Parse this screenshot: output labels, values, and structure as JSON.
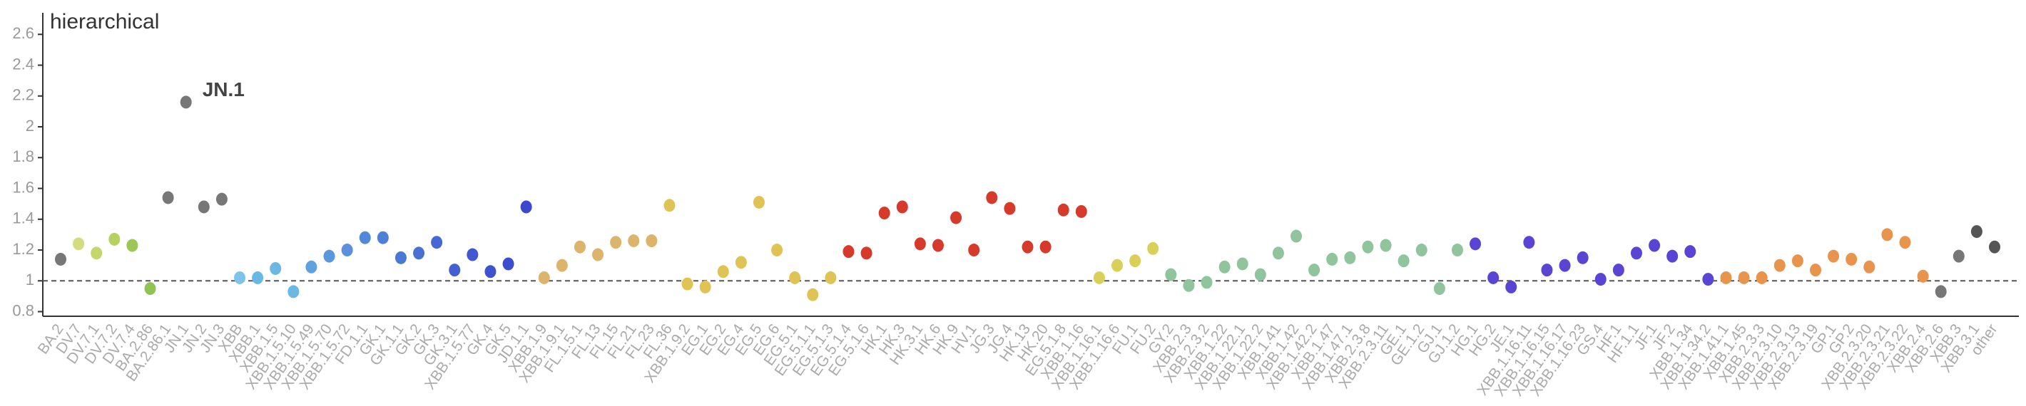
{
  "chart_data": {
    "type": "dot",
    "title": "hierarchical",
    "annotations": [
      "JN.1"
    ],
    "reference_line": 1,
    "categories": [
      "BA.2",
      "DV.7",
      "DV.7.1",
      "DV.7.2",
      "DV.7.4",
      "BA.2.86",
      "BA.2.86.1",
      "JN.1",
      "JN.2",
      "JN.3",
      "XBB",
      "XBB.1",
      "XBB.1.5",
      "XBB.1.5.10",
      "XBB.1.5.49",
      "XBB.1.5.70",
      "XBB.1.5.72",
      "FD.1.1",
      "GK.1",
      "GK.1.1",
      "GK.2",
      "GK.3",
      "GK.3.1",
      "XBB.1.5.77",
      "GK.4",
      "GK.5",
      "JD.1.1",
      "XBB.1.9",
      "XBB.1.9.1",
      "FL.1.5.1",
      "FL.13",
      "FL.15",
      "FL.21",
      "FL.23",
      "FL.36",
      "XBB.1.9.2",
      "EG.1",
      "EG.2",
      "EG.4",
      "EG.5",
      "EG.6",
      "EG.5.1",
      "EG.5.1.1",
      "EG.5.1.3",
      "EG.5.1.4",
      "EG.5.1.6",
      "HK.1",
      "HK.3",
      "HK.3.1",
      "HK.6",
      "HK.9",
      "HV.1",
      "JG.3",
      "JG.4",
      "HK.13",
      "HK.20",
      "EG.5.1.8",
      "XBB.1.16",
      "XBB.1.16.1",
      "XBB.1.16.6",
      "FU.1",
      "FU.2",
      "GY.2",
      "XBB.2.3",
      "XBB.2.3.2",
      "XBB.1.22",
      "XBB.1.22.1",
      "XBB.1.22.2",
      "XBB.1.41",
      "XBB.1.42",
      "XBB.1.42.2",
      "XBB.1.47",
      "XBB.1.47.1",
      "XBB.2.3.8",
      "XBB.2.3.11",
      "GE.1",
      "GE.1.2",
      "GJ.1",
      "GJ.1.2",
      "HG.1",
      "HG.2",
      "JE.1",
      "XBB.1.16.11",
      "XBB.1.16.15",
      "XBB.1.16.17",
      "XBB.1.16.23",
      "GS.4",
      "HF.1",
      "HF.1.1",
      "JF.1",
      "JF.2",
      "XBB.1.34",
      "XBB.1.34.2",
      "XBB.1.41.1",
      "XBB.1.45",
      "XBB.2.3.3",
      "XBB.2.3.10",
      "XBB.2.3.13",
      "XBB.2.3.19",
      "GP.1",
      "GP.2",
      "XBB.2.3.20",
      "XBB.2.3.21",
      "XBB.2.3.22",
      "XBB.2.4",
      "XBB.2.6",
      "XBB.3",
      "XBB.3.1",
      "other"
    ],
    "values": [
      1.14,
      1.24,
      1.18,
      1.27,
      1.23,
      0.95,
      1.54,
      2.16,
      1.48,
      1.53,
      1.02,
      1.02,
      1.08,
      0.93,
      1.09,
      1.16,
      1.2,
      1.28,
      1.28,
      1.15,
      1.18,
      1.25,
      1.07,
      1.17,
      1.06,
      1.11,
      1.48,
      1.02,
      1.1,
      1.22,
      1.17,
      1.25,
      1.26,
      1.26,
      1.49,
      0.98,
      0.96,
      1.06,
      1.12,
      1.51,
      1.2,
      1.02,
      0.91,
      1.02,
      1.19,
      1.18,
      1.44,
      1.48,
      1.24,
      1.23,
      1.41,
      1.2,
      1.54,
      1.47,
      1.22,
      1.22,
      1.46,
      1.45,
      1.02,
      1.1,
      1.13,
      1.21,
      1.04,
      0.97,
      0.99,
      1.09,
      1.11,
      1.04,
      1.18,
      1.29,
      1.07,
      1.14,
      1.15,
      1.22,
      1.23,
      1.13,
      1.2,
      0.95,
      1.2,
      1.24,
      1.02,
      0.96,
      1.25,
      1.07,
      1.1,
      1.15,
      1.01,
      1.07,
      1.18,
      1.23,
      1.16,
      1.19,
      1.01,
      1.02,
      1.02,
      1.02,
      1.1,
      1.13,
      1.07,
      1.16,
      1.14,
      1.09,
      1.3,
      1.25,
      1.03,
      0.93,
      1.16,
      1.32,
      1.22
    ],
    "colors": [
      "#777777",
      "#d4dc80",
      "#c5d66a",
      "#b8d060",
      "#9cc658",
      "#8fc454",
      "#777777",
      "#777777",
      "#777777",
      "#777777",
      "#7cc4ea",
      "#6cb8e4",
      "#6cb8e4",
      "#6cb8e4",
      "#5fa2e0",
      "#5a98de",
      "#5a90dc",
      "#5288da",
      "#4f80d8",
      "#4a78d6",
      "#4a70d6",
      "#4668d4",
      "#4260d2",
      "#4058d2",
      "#3f52d0",
      "#3d4dd0",
      "#3d48ce",
      "#dcb46c",
      "#dcb46c",
      "#dcb46c",
      "#dcb46c",
      "#dcb46c",
      "#dcb46c",
      "#dcb46c",
      "#dfc355",
      "#dfc355",
      "#dfc355",
      "#dfc355",
      "#dfc355",
      "#dfc355",
      "#dfc355",
      "#dfc355",
      "#dfc355",
      "#dfc355",
      "#d63a2a",
      "#d63a2a",
      "#d63a2a",
      "#d63a2a",
      "#d63a2a",
      "#d63a2a",
      "#d63a2a",
      "#d63a2a",
      "#d63a2a",
      "#d63a2a",
      "#d63a2a",
      "#d63a2a",
      "#d63a2a",
      "#d63a2a",
      "#d8d058",
      "#d8d058",
      "#d8d058",
      "#d8d058",
      "#90c49c",
      "#90c49c",
      "#90c49c",
      "#90c49c",
      "#90c49c",
      "#90c49c",
      "#90c49c",
      "#90c49c",
      "#90c49c",
      "#90c49c",
      "#90c49c",
      "#90c49c",
      "#90c49c",
      "#90c49c",
      "#90c49c",
      "#90c49c",
      "#90c49c",
      "#5a44d4",
      "#5a44d4",
      "#5a44d4",
      "#5a44d4",
      "#5a44d4",
      "#5a44d4",
      "#5a44d4",
      "#5a44d4",
      "#5a44d4",
      "#5a44d4",
      "#5a44d4",
      "#5a44d4",
      "#5a44d4",
      "#5a44d4",
      "#e8944c",
      "#e8944c",
      "#e8944c",
      "#e8944c",
      "#e8944c",
      "#e8944c",
      "#e8944c",
      "#e8944c",
      "#e8944c",
      "#e8944c",
      "#e8944c",
      "#e8944c",
      "#777777",
      "#777777",
      "#555555",
      "#555555"
    ],
    "ylim": [
      0.77,
      2.74
    ],
    "yticks": [
      0.8,
      1,
      1.2,
      1.4,
      1.6,
      1.8,
      2,
      2.2,
      2.4,
      2.6
    ]
  }
}
